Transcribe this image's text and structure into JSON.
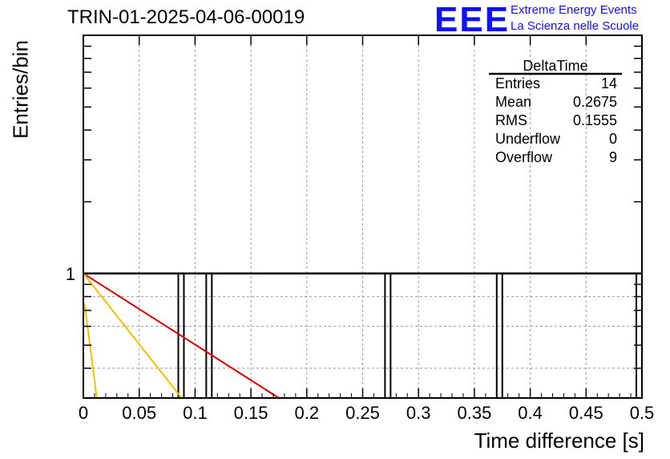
{
  "header": {
    "title": "TRIN-01-2025-04-06-00019",
    "logo_text": "EEE",
    "tagline_line1": "Extreme Energy Events",
    "tagline_line2": "La Scienza nelle Scuole",
    "logo_color": "#1010ff"
  },
  "stats_box": {
    "title": "DeltaTime",
    "rows": [
      {
        "label": "Entries",
        "value": "14"
      },
      {
        "label": "Mean",
        "value": "0.2675"
      },
      {
        "label": "RMS",
        "value": "0.1555"
      },
      {
        "label": "Underflow",
        "value": "0"
      },
      {
        "label": "Overflow",
        "value": "9"
      }
    ]
  },
  "chart_data": {
    "type": "bar",
    "histogram_name": "DeltaTime",
    "xlabel": "Time difference [s]",
    "ylabel": "Entries/bin",
    "xlim": [
      0,
      0.5
    ],
    "y_scale": "log",
    "ylim": [
      0.3,
      10
    ],
    "grid": true,
    "x_ticks": [
      "0",
      "0.05",
      "0.1",
      "0.15",
      "0.2",
      "0.25",
      "0.3",
      "0.35",
      "0.4",
      "0.45",
      "0.5"
    ],
    "y_ticks": [
      "1"
    ],
    "bin_width": 0.005,
    "bins": [
      {
        "x": 0.0875,
        "value": 1
      },
      {
        "x": 0.1125,
        "value": 1
      },
      {
        "x": 0.2725,
        "value": 1
      },
      {
        "x": 0.3725,
        "value": 1
      },
      {
        "x": 0.4975,
        "value": 1
      }
    ],
    "fit_lines": [
      {
        "color": "#dd0000",
        "points": [
          [
            0.0,
            1.0
          ],
          [
            0.175,
            0.3
          ]
        ]
      },
      {
        "color": "#f5c000",
        "points": [
          [
            0.0,
            1.0
          ],
          [
            0.088,
            0.3
          ]
        ]
      },
      {
        "color": "#f5c000",
        "points": [
          [
            0.001,
            0.75
          ],
          [
            0.012,
            0.3
          ]
        ]
      }
    ]
  }
}
